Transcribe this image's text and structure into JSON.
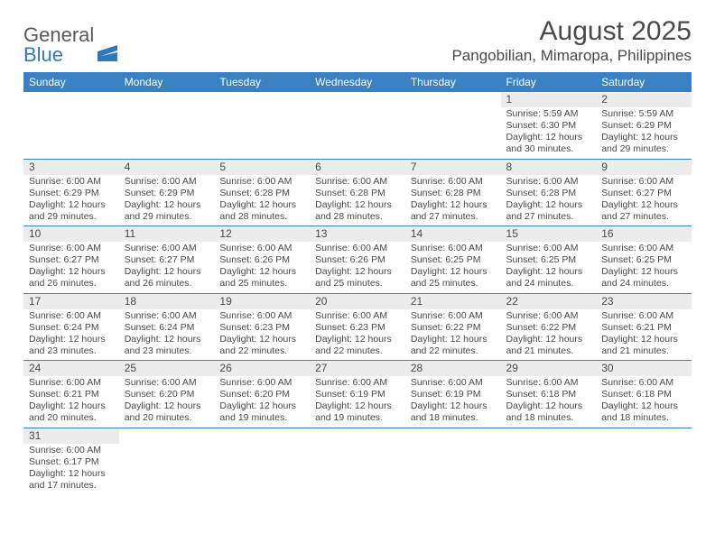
{
  "brand": {
    "word1": "General",
    "word2": "Blue"
  },
  "title": "August 2025",
  "location": "Pangobilian, Mimaropa, Philippines",
  "colors": {
    "header_bg": "#3a81c4",
    "header_text": "#ffffff",
    "daynum_bg": "#ececec",
    "border": "#3a81c4",
    "text": "#4a4a4a",
    "brand_blue": "#2f78bd"
  },
  "weekdays": [
    "Sunday",
    "Monday",
    "Tuesday",
    "Wednesday",
    "Thursday",
    "Friday",
    "Saturday"
  ],
  "weeks": [
    [
      null,
      null,
      null,
      null,
      null,
      {
        "n": "1",
        "sr": "Sunrise: 5:59 AM",
        "ss": "Sunset: 6:30 PM",
        "d1": "Daylight: 12 hours",
        "d2": "and 30 minutes."
      },
      {
        "n": "2",
        "sr": "Sunrise: 5:59 AM",
        "ss": "Sunset: 6:29 PM",
        "d1": "Daylight: 12 hours",
        "d2": "and 29 minutes."
      }
    ],
    [
      {
        "n": "3",
        "sr": "Sunrise: 6:00 AM",
        "ss": "Sunset: 6:29 PM",
        "d1": "Daylight: 12 hours",
        "d2": "and 29 minutes."
      },
      {
        "n": "4",
        "sr": "Sunrise: 6:00 AM",
        "ss": "Sunset: 6:29 PM",
        "d1": "Daylight: 12 hours",
        "d2": "and 29 minutes."
      },
      {
        "n": "5",
        "sr": "Sunrise: 6:00 AM",
        "ss": "Sunset: 6:28 PM",
        "d1": "Daylight: 12 hours",
        "d2": "and 28 minutes."
      },
      {
        "n": "6",
        "sr": "Sunrise: 6:00 AM",
        "ss": "Sunset: 6:28 PM",
        "d1": "Daylight: 12 hours",
        "d2": "and 28 minutes."
      },
      {
        "n": "7",
        "sr": "Sunrise: 6:00 AM",
        "ss": "Sunset: 6:28 PM",
        "d1": "Daylight: 12 hours",
        "d2": "and 27 minutes."
      },
      {
        "n": "8",
        "sr": "Sunrise: 6:00 AM",
        "ss": "Sunset: 6:28 PM",
        "d1": "Daylight: 12 hours",
        "d2": "and 27 minutes."
      },
      {
        "n": "9",
        "sr": "Sunrise: 6:00 AM",
        "ss": "Sunset: 6:27 PM",
        "d1": "Daylight: 12 hours",
        "d2": "and 27 minutes."
      }
    ],
    [
      {
        "n": "10",
        "sr": "Sunrise: 6:00 AM",
        "ss": "Sunset: 6:27 PM",
        "d1": "Daylight: 12 hours",
        "d2": "and 26 minutes."
      },
      {
        "n": "11",
        "sr": "Sunrise: 6:00 AM",
        "ss": "Sunset: 6:27 PM",
        "d1": "Daylight: 12 hours",
        "d2": "and 26 minutes."
      },
      {
        "n": "12",
        "sr": "Sunrise: 6:00 AM",
        "ss": "Sunset: 6:26 PM",
        "d1": "Daylight: 12 hours",
        "d2": "and 25 minutes."
      },
      {
        "n": "13",
        "sr": "Sunrise: 6:00 AM",
        "ss": "Sunset: 6:26 PM",
        "d1": "Daylight: 12 hours",
        "d2": "and 25 minutes."
      },
      {
        "n": "14",
        "sr": "Sunrise: 6:00 AM",
        "ss": "Sunset: 6:25 PM",
        "d1": "Daylight: 12 hours",
        "d2": "and 25 minutes."
      },
      {
        "n": "15",
        "sr": "Sunrise: 6:00 AM",
        "ss": "Sunset: 6:25 PM",
        "d1": "Daylight: 12 hours",
        "d2": "and 24 minutes."
      },
      {
        "n": "16",
        "sr": "Sunrise: 6:00 AM",
        "ss": "Sunset: 6:25 PM",
        "d1": "Daylight: 12 hours",
        "d2": "and 24 minutes."
      }
    ],
    [
      {
        "n": "17",
        "sr": "Sunrise: 6:00 AM",
        "ss": "Sunset: 6:24 PM",
        "d1": "Daylight: 12 hours",
        "d2": "and 23 minutes."
      },
      {
        "n": "18",
        "sr": "Sunrise: 6:00 AM",
        "ss": "Sunset: 6:24 PM",
        "d1": "Daylight: 12 hours",
        "d2": "and 23 minutes."
      },
      {
        "n": "19",
        "sr": "Sunrise: 6:00 AM",
        "ss": "Sunset: 6:23 PM",
        "d1": "Daylight: 12 hours",
        "d2": "and 22 minutes."
      },
      {
        "n": "20",
        "sr": "Sunrise: 6:00 AM",
        "ss": "Sunset: 6:23 PM",
        "d1": "Daylight: 12 hours",
        "d2": "and 22 minutes."
      },
      {
        "n": "21",
        "sr": "Sunrise: 6:00 AM",
        "ss": "Sunset: 6:22 PM",
        "d1": "Daylight: 12 hours",
        "d2": "and 22 minutes."
      },
      {
        "n": "22",
        "sr": "Sunrise: 6:00 AM",
        "ss": "Sunset: 6:22 PM",
        "d1": "Daylight: 12 hours",
        "d2": "and 21 minutes."
      },
      {
        "n": "23",
        "sr": "Sunrise: 6:00 AM",
        "ss": "Sunset: 6:21 PM",
        "d1": "Daylight: 12 hours",
        "d2": "and 21 minutes."
      }
    ],
    [
      {
        "n": "24",
        "sr": "Sunrise: 6:00 AM",
        "ss": "Sunset: 6:21 PM",
        "d1": "Daylight: 12 hours",
        "d2": "and 20 minutes."
      },
      {
        "n": "25",
        "sr": "Sunrise: 6:00 AM",
        "ss": "Sunset: 6:20 PM",
        "d1": "Daylight: 12 hours",
        "d2": "and 20 minutes."
      },
      {
        "n": "26",
        "sr": "Sunrise: 6:00 AM",
        "ss": "Sunset: 6:20 PM",
        "d1": "Daylight: 12 hours",
        "d2": "and 19 minutes."
      },
      {
        "n": "27",
        "sr": "Sunrise: 6:00 AM",
        "ss": "Sunset: 6:19 PM",
        "d1": "Daylight: 12 hours",
        "d2": "and 19 minutes."
      },
      {
        "n": "28",
        "sr": "Sunrise: 6:00 AM",
        "ss": "Sunset: 6:19 PM",
        "d1": "Daylight: 12 hours",
        "d2": "and 18 minutes."
      },
      {
        "n": "29",
        "sr": "Sunrise: 6:00 AM",
        "ss": "Sunset: 6:18 PM",
        "d1": "Daylight: 12 hours",
        "d2": "and 18 minutes."
      },
      {
        "n": "30",
        "sr": "Sunrise: 6:00 AM",
        "ss": "Sunset: 6:18 PM",
        "d1": "Daylight: 12 hours",
        "d2": "and 18 minutes."
      }
    ],
    [
      {
        "n": "31",
        "sr": "Sunrise: 6:00 AM",
        "ss": "Sunset: 6:17 PM",
        "d1": "Daylight: 12 hours",
        "d2": "and 17 minutes."
      },
      null,
      null,
      null,
      null,
      null,
      null
    ]
  ]
}
